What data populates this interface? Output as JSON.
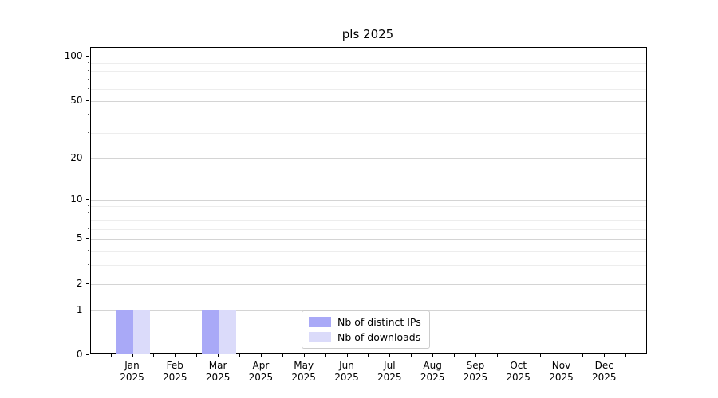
{
  "chart_data": {
    "type": "bar",
    "title": "pls 2025",
    "categories": [
      "Jan",
      "Feb",
      "Mar",
      "Apr",
      "May",
      "Jun",
      "Jul",
      "Aug",
      "Sep",
      "Oct",
      "Nov",
      "Dec"
    ],
    "year": "2025",
    "series": [
      {
        "name": "Nb of distinct IPs",
        "color": "#a9a9f7",
        "values": [
          1,
          0,
          1,
          0,
          0,
          0,
          0,
          0,
          0,
          0,
          0,
          0
        ]
      },
      {
        "name": "Nb of downloads",
        "color": "#dbdbfa",
        "values": [
          1,
          0,
          1,
          0,
          0,
          0,
          0,
          0,
          0,
          0,
          0,
          0
        ]
      }
    ],
    "xlabel": "",
    "ylabel": "",
    "yscale": "log1p",
    "ylim": [
      0,
      100
    ],
    "y_tick_labels": [
      100,
      50,
      20,
      10,
      5,
      2,
      1,
      0
    ],
    "grid": {
      "major_values": [
        1,
        2,
        5,
        10,
        20,
        50,
        100
      ],
      "minor_values": [
        3,
        4,
        6,
        7,
        8,
        9,
        30,
        40,
        60,
        70,
        80,
        90
      ],
      "major_color": "#d4d4d4",
      "minor_color": "#ededed"
    },
    "legend_position": "lower center",
    "spine_color": "#000000",
    "background_color": "#ffffff"
  }
}
